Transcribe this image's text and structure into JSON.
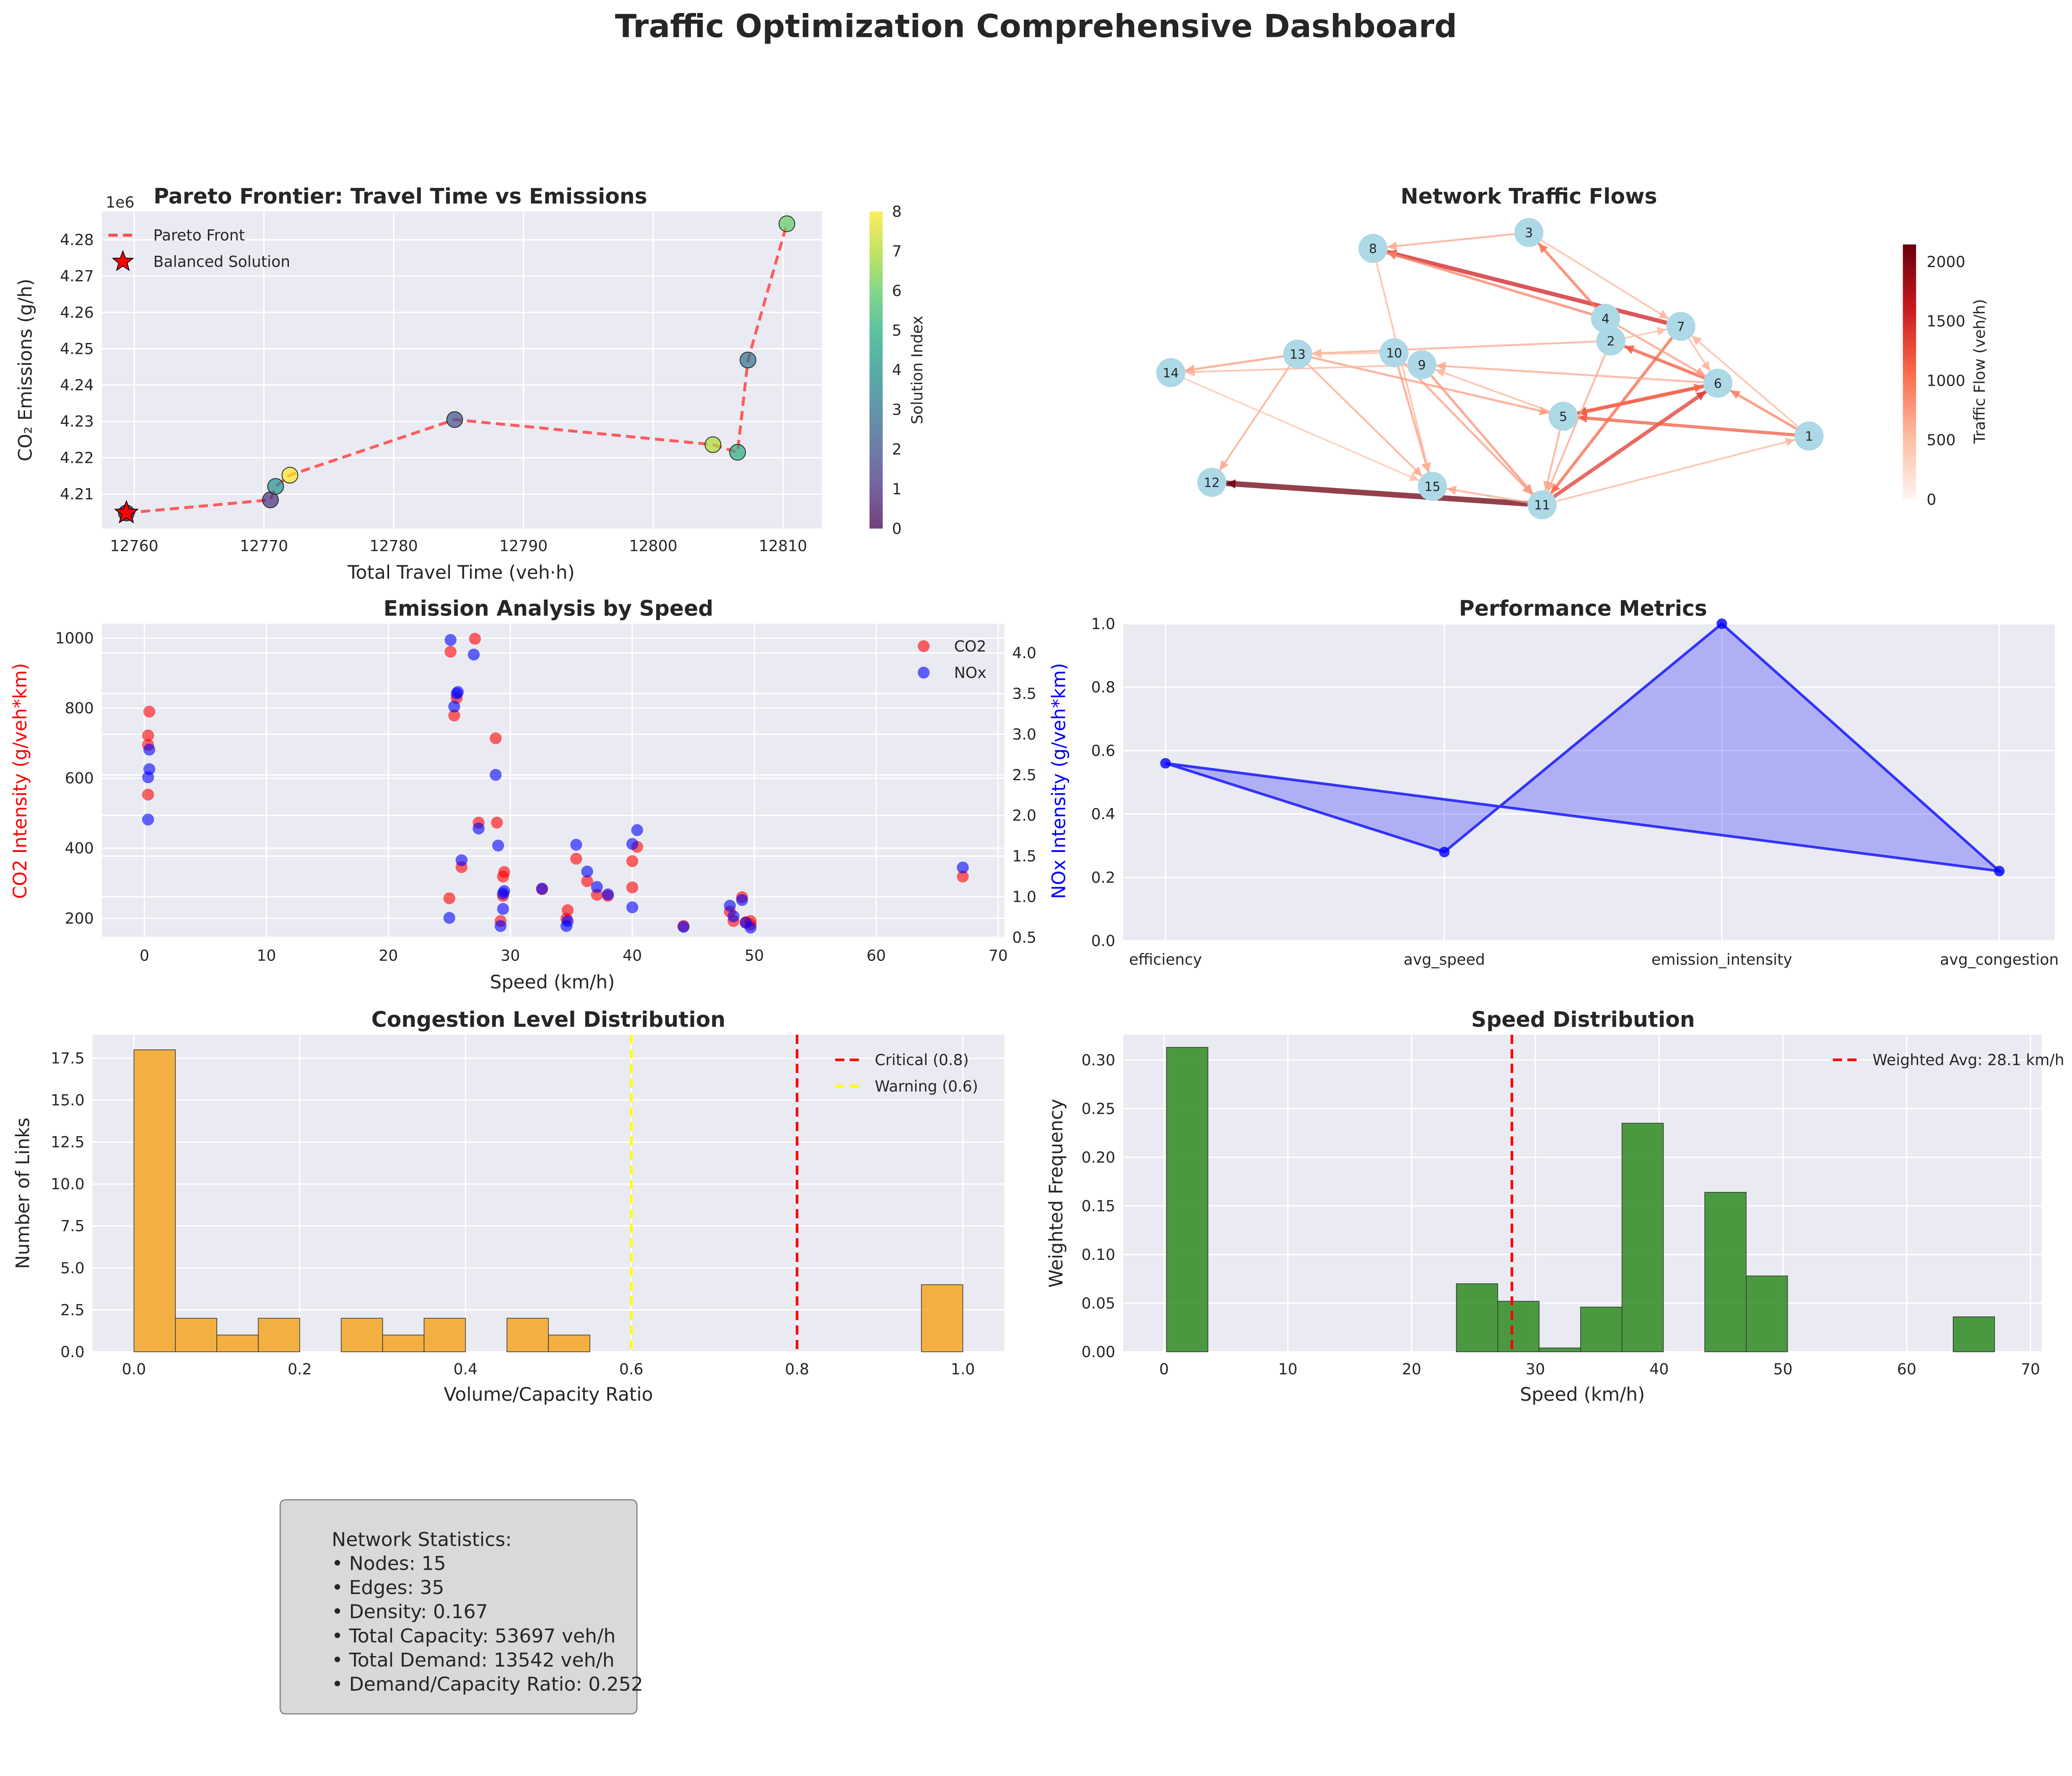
{
  "dashboard_title": "Traffic Optimization Comprehensive Dashboard",
  "chart_data": [
    {
      "type": "scatter",
      "title": "Pareto Frontier: Travel Time vs Emissions",
      "xlabel": "Total Travel Time (veh·h)",
      "ylabel": "CO₂ Emissions (g/h)",
      "y_offset_label": "1e6",
      "xlim": [
        12757.5,
        12813
      ],
      "ylim": [
        4200500,
        4287800
      ],
      "xticks": [
        12760,
        12770,
        12780,
        12790,
        12800,
        12810
      ],
      "yticks": [
        4210000,
        4220000,
        4230000,
        4240000,
        4250000,
        4260000,
        4270000,
        4280000
      ],
      "ytick_labels": [
        "4.21",
        "4.22",
        "4.23",
        "4.24",
        "4.25",
        "4.26",
        "4.27",
        "4.28"
      ],
      "grid": true,
      "legend_position": "top-left",
      "legend": [
        "Pareto Front",
        "Balanced Solution"
      ],
      "colorbar": {
        "label": "Solution Index",
        "range": [
          0,
          8
        ],
        "ticks": [
          "0",
          "1",
          "2",
          "3",
          "4",
          "5",
          "6",
          "7",
          "8"
        ],
        "colormap": "viridis"
      },
      "points": [
        {
          "index": 0,
          "x": 12759.4,
          "y": 4204800
        },
        {
          "index": 1,
          "x": 12770.5,
          "y": 4208400
        },
        {
          "index": 2,
          "x": 12784.7,
          "y": 4230500
        },
        {
          "index": 3,
          "x": 12807.3,
          "y": 4246900
        },
        {
          "index": 4,
          "x": 12770.9,
          "y": 4212100
        },
        {
          "index": 5,
          "x": 12806.5,
          "y": 4221500
        },
        {
          "index": 6,
          "x": 12810.3,
          "y": 4284400
        },
        {
          "index": 7,
          "x": 12804.6,
          "y": 4223600
        },
        {
          "index": 8,
          "x": 12772.0,
          "y": 4215200
        }
      ],
      "balanced_solution": {
        "x": 12759.4,
        "y": 4204800
      },
      "line_color": "#ff4d4d",
      "star_color": "#ff0000"
    },
    {
      "type": "network",
      "title": "Network Traffic Flows",
      "colorbar": {
        "label": "Traffic Flow (veh/h)",
        "range": [
          0,
          2145
        ],
        "ticks": [
          0,
          500,
          1000,
          1500,
          2000
        ],
        "colormap": "Reds"
      },
      "nodes": [
        "1",
        "2",
        "3",
        "4",
        "5",
        "6",
        "7",
        "8",
        "9",
        "10",
        "11",
        "12",
        "13",
        "14",
        "15"
      ],
      "node_color": "#add8e6",
      "edges": [
        {
          "from": "11",
          "to": "12",
          "flow": 2100
        },
        {
          "from": "7",
          "to": "8",
          "flow": 1450
        },
        {
          "from": "11",
          "to": "6",
          "flow": 1250
        },
        {
          "from": "6",
          "to": "5",
          "flow": 1200
        },
        {
          "from": "1",
          "to": "5",
          "flow": 1000
        },
        {
          "from": "6",
          "to": "2",
          "flow": 1000
        },
        {
          "from": "5",
          "to": "6",
          "flow": 900
        },
        {
          "from": "7",
          "to": "11",
          "flow": 900
        },
        {
          "from": "4",
          "to": "3",
          "flow": 800
        },
        {
          "from": "4",
          "to": "8",
          "flow": 700
        },
        {
          "from": "1",
          "to": "6",
          "flow": 700
        },
        {
          "from": "9",
          "to": "11",
          "flow": 600
        },
        {
          "from": "10",
          "to": "15",
          "flow": 500
        },
        {
          "from": "10",
          "to": "11",
          "flow": 500
        },
        {
          "from": "13",
          "to": "5",
          "flow": 500
        },
        {
          "from": "4",
          "to": "6",
          "flow": 500
        },
        {
          "from": "13",
          "to": "14",
          "flow": 500
        },
        {
          "from": "13",
          "to": "12",
          "flow": 400
        },
        {
          "from": "13",
          "to": "15",
          "flow": 400
        },
        {
          "from": "2",
          "to": "13",
          "flow": 400
        },
        {
          "from": "6",
          "to": "9",
          "flow": 400
        },
        {
          "from": "3",
          "to": "8",
          "flow": 400
        },
        {
          "from": "5",
          "to": "11",
          "flow": 400
        },
        {
          "from": "2",
          "to": "11",
          "flow": 400
        },
        {
          "from": "11",
          "to": "15",
          "flow": 400
        },
        {
          "from": "3",
          "to": "7",
          "flow": 300
        },
        {
          "from": "11",
          "to": "1",
          "flow": 300
        },
        {
          "from": "8",
          "to": "15",
          "flow": 300
        },
        {
          "from": "1",
          "to": "7",
          "flow": 300
        },
        {
          "from": "9",
          "to": "14",
          "flow": 300
        },
        {
          "from": "7",
          "to": "6",
          "flow": 300
        },
        {
          "from": "5",
          "to": "9",
          "flow": 300
        },
        {
          "from": "2",
          "to": "7",
          "flow": 250
        },
        {
          "from": "10",
          "to": "13",
          "flow": 250
        },
        {
          "from": "14",
          "to": "15",
          "flow": 200
        }
      ]
    },
    {
      "type": "scatter",
      "title": "Emission Analysis by Speed",
      "xlabel": "Speed (km/h)",
      "ylabel": "CO2 Intensity (g/veh*km)",
      "y2label": "NOx Intensity (g/veh*km)",
      "xlim": [
        -3.5,
        70.5
      ],
      "ylim": [
        143,
        1041
      ],
      "y2lim": [
        0.49,
        4.36
      ],
      "xticks": [
        0,
        10,
        20,
        30,
        40,
        50,
        60,
        70
      ],
      "yticks": [
        200,
        400,
        600,
        800,
        1000
      ],
      "y2ticks": [
        "0.5",
        "1.0",
        "1.5",
        "2.0",
        "2.5",
        "3.0",
        "3.5",
        "4.0"
      ],
      "grid": true,
      "legend_position": "top-right",
      "series": [
        {
          "name": "CO2",
          "axis": "left",
          "color": "#ff0000",
          "points": [
            [
              0.4,
              790
            ],
            [
              0.3,
              722
            ],
            [
              0.3,
              695
            ],
            [
              0.3,
              553
            ],
            [
              25.1,
              961
            ],
            [
              27.1,
              998
            ],
            [
              25.6,
              829
            ],
            [
              25.4,
              779
            ],
            [
              28.8,
              714
            ],
            [
              27.4,
              473
            ],
            [
              28.9,
              473
            ],
            [
              26.0,
              346
            ],
            [
              25.0,
              257
            ],
            [
              29.4,
              319
            ],
            [
              29.5,
              332
            ],
            [
              29.4,
              264
            ],
            [
              29.2,
              192
            ],
            [
              32.6,
              283
            ],
            [
              34.7,
              223
            ],
            [
              34.6,
              199
            ],
            [
              35.4,
              370
            ],
            [
              36.3,
              306
            ],
            [
              37.1,
              267
            ],
            [
              38.0,
              264
            ],
            [
              40.0,
              363
            ],
            [
              40.4,
              404
            ],
            [
              40.0,
              288
            ],
            [
              44.2,
              178
            ],
            [
              48.0,
              219
            ],
            [
              48.3,
              192
            ],
            [
              49.0,
              260
            ],
            [
              49.7,
              192
            ],
            [
              49.3,
              189
            ],
            [
              49.7,
              182
            ],
            [
              67.1,
              319
            ]
          ]
        },
        {
          "name": "NOx",
          "axis": "right",
          "color": "#0000ff",
          "points": [
            [
              25.1,
              4.16
            ],
            [
              27.0,
              3.98
            ],
            [
              25.7,
              3.52
            ],
            [
              25.6,
              3.5
            ],
            [
              25.4,
              3.34
            ],
            [
              0.4,
              2.81
            ],
            [
              0.4,
              2.57
            ],
            [
              0.3,
              2.47
            ],
            [
              0.3,
              1.95
            ],
            [
              28.8,
              2.5
            ],
            [
              27.4,
              1.84
            ],
            [
              29.0,
              1.63
            ],
            [
              26.0,
              1.45
            ],
            [
              25.0,
              0.74
            ],
            [
              29.4,
              1.04
            ],
            [
              29.5,
              1.07
            ],
            [
              29.4,
              0.85
            ],
            [
              29.2,
              0.64
            ],
            [
              32.6,
              1.1
            ],
            [
              34.6,
              0.64
            ],
            [
              34.7,
              0.7
            ],
            [
              35.4,
              1.64
            ],
            [
              36.3,
              1.31
            ],
            [
              37.1,
              1.12
            ],
            [
              38.0,
              1.03
            ],
            [
              40.4,
              1.82
            ],
            [
              40.0,
              1.65
            ],
            [
              40.0,
              0.87
            ],
            [
              44.2,
              0.63
            ],
            [
              48.0,
              0.89
            ],
            [
              48.3,
              0.76
            ],
            [
              49.0,
              0.96
            ],
            [
              49.3,
              0.68
            ],
            [
              49.7,
              0.62
            ],
            [
              67.1,
              1.36
            ]
          ]
        }
      ]
    },
    {
      "type": "area",
      "title": "Performance Metrics",
      "categories": [
        "efficiency",
        "avg_speed",
        "emission_intensity",
        "avg_congestion"
      ],
      "values": [
        0.56,
        0.28,
        1.0,
        0.22
      ],
      "ylim": [
        0,
        1
      ],
      "yticks": [
        "0.0",
        "0.2",
        "0.4",
        "0.6",
        "0.8",
        "1.0"
      ],
      "grid": true,
      "color": "#0000ff"
    },
    {
      "type": "bar",
      "title": "Congestion Level Distribution",
      "xlabel": "Volume/Capacity Ratio",
      "ylabel": "Number of Links",
      "bin_start": 0.0,
      "bin_width": 0.05,
      "counts": [
        18,
        2,
        1,
        2,
        0,
        2,
        1,
        2,
        0,
        2,
        1,
        0,
        0,
        0,
        0,
        0,
        0,
        0,
        0,
        4
      ],
      "xlim": [
        -0.05,
        1.05
      ],
      "ylim": [
        0,
        18.9
      ],
      "xticks": [
        "0.0",
        "0.2",
        "0.4",
        "0.6",
        "0.8",
        "1.0"
      ],
      "yticks": [
        "0.0",
        "2.5",
        "5.0",
        "7.5",
        "10.0",
        "12.5",
        "15.0",
        "17.5"
      ],
      "color": "#f5a623",
      "grid": true,
      "legend_position": "top-right",
      "reference_lines": [
        {
          "label": "Critical (0.8)",
          "x": 0.8,
          "color": "#ff0000"
        },
        {
          "label": "Warning (0.6)",
          "x": 0.6,
          "color": "#ffff00"
        }
      ]
    },
    {
      "type": "bar",
      "title": "Speed Distribution",
      "xlabel": "Speed (km/h)",
      "ylabel": "Weighted Frequency",
      "bin_start": 0.2,
      "bin_width": 3.345,
      "counts": [
        0.313,
        0,
        0,
        0,
        0,
        0,
        0,
        0.07,
        0.052,
        0.004,
        0.046,
        0.235,
        0,
        0.164,
        0.078,
        0,
        0,
        0,
        0,
        0.036
      ],
      "xlim": [
        -3.3,
        70.9
      ],
      "ylim": [
        0,
        0.326
      ],
      "xticks": [
        "0",
        "10",
        "20",
        "30",
        "40",
        "50",
        "60",
        "70"
      ],
      "yticks": [
        "0.00",
        "0.05",
        "0.10",
        "0.15",
        "0.20",
        "0.25",
        "0.30"
      ],
      "color": "#2e8b22",
      "grid": true,
      "legend_position": "top-right",
      "reference_lines": [
        {
          "label": "Weighted Avg: 28.1 km/h",
          "x": 28.1,
          "color": "#ff0000"
        }
      ]
    }
  ],
  "network_statistics": {
    "heading": "Network Statistics:",
    "lines": [
      "• Nodes: 15",
      "• Edges: 35",
      "• Density: 0.167",
      "• Total Capacity: 53697 veh/h",
      "• Total Demand: 13542 veh/h",
      "• Demand/Capacity Ratio: 0.252"
    ]
  }
}
